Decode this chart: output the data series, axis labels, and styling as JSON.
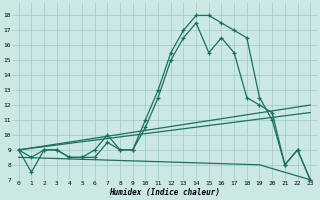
{
  "xlabel": "Humidex (Indice chaleur)",
  "bg_color": "#cce8e4",
  "grid_color": "#99ccc7",
  "line_color": "#1a7060",
  "xlim": [
    -0.5,
    23.5
  ],
  "ylim": [
    7,
    18.8
  ],
  "xticks": [
    0,
    1,
    2,
    3,
    4,
    5,
    6,
    7,
    8,
    9,
    10,
    11,
    12,
    13,
    14,
    15,
    16,
    17,
    18,
    19,
    20,
    21,
    22,
    23
  ],
  "yticks": [
    7,
    8,
    9,
    10,
    11,
    12,
    13,
    14,
    15,
    16,
    17,
    18
  ],
  "curve1_x": [
    0,
    1,
    2,
    3,
    4,
    5,
    6,
    7,
    8,
    9,
    10,
    11,
    12,
    13,
    14,
    15,
    16,
    17,
    18,
    19,
    20,
    21,
    22,
    23
  ],
  "curve1_y": [
    9.0,
    8.5,
    9.0,
    9.0,
    8.5,
    8.5,
    9.0,
    10.0,
    9.0,
    9.0,
    11.0,
    13.0,
    15.5,
    17.0,
    18.0,
    18.0,
    17.5,
    17.0,
    16.5,
    12.5,
    11.0,
    8.0,
    9.0,
    7.0
  ],
  "curve2_x": [
    0,
    1,
    2,
    3,
    4,
    5,
    6,
    7,
    8,
    9,
    10,
    11,
    12,
    13,
    14,
    15,
    16,
    17,
    18,
    19,
    20,
    21,
    22,
    23
  ],
  "curve2_y": [
    9.0,
    7.5,
    9.0,
    9.0,
    8.5,
    8.5,
    8.5,
    9.5,
    9.0,
    9.0,
    10.5,
    12.5,
    15.0,
    16.5,
    17.5,
    15.5,
    16.5,
    15.5,
    12.5,
    12.0,
    11.5,
    8.0,
    9.0,
    7.0
  ],
  "line3_x": [
    0,
    23
  ],
  "line3_y": [
    9.0,
    12.0
  ],
  "line4_x": [
    0,
    23
  ],
  "line4_y": [
    9.0,
    11.5
  ],
  "line5_x": [
    0,
    19,
    23
  ],
  "line5_y": [
    8.5,
    8.0,
    7.0
  ]
}
